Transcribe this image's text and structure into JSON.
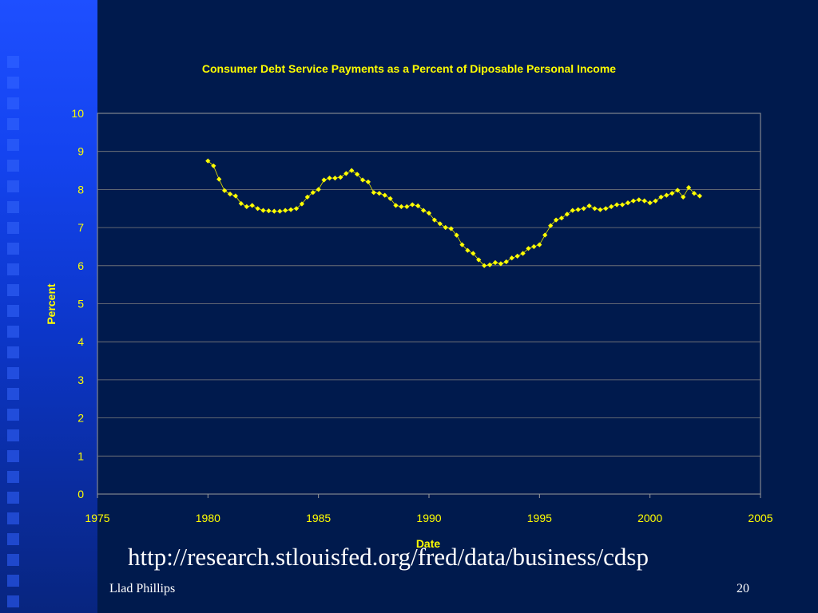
{
  "slide": {
    "url": "http://research.stlouisfed.org/fred/data/business/cdsp",
    "author": "Llad Phillips",
    "page_number": "20"
  },
  "colors": {
    "background": "#001a4d",
    "sidebar": "#1444f0",
    "accent_text": "#ffff00",
    "series": "#ffff00",
    "grid": "#7f7f7f"
  },
  "chart_data": {
    "type": "scatter",
    "title": "Consumer Debt Service Payments as a Percent of Diposable Personal Income",
    "xlabel": "Date",
    "ylabel": "Percent",
    "xlim": [
      1975,
      2005
    ],
    "ylim": [
      0,
      10
    ],
    "x_ticks": [
      "1975",
      "1980",
      "1985",
      "1990",
      "1995",
      "2000",
      "2005"
    ],
    "y_ticks": [
      "0",
      "1",
      "2",
      "3",
      "4",
      "5",
      "6",
      "7",
      "8",
      "9",
      "10"
    ],
    "grid": "horizontal",
    "connected": true,
    "series": [
      {
        "x": [
          1980.0,
          1980.25,
          1980.5,
          1980.75,
          1981.0,
          1981.25,
          1981.5,
          1981.75,
          1982.0,
          1982.25,
          1982.5,
          1982.75,
          1983.0,
          1983.25,
          1983.5,
          1983.75,
          1984.0,
          1984.25,
          1984.5,
          1984.75,
          1985.0,
          1985.25,
          1985.5,
          1985.75,
          1986.0,
          1986.25,
          1986.5,
          1986.75,
          1987.0,
          1987.25,
          1987.5,
          1987.75,
          1988.0,
          1988.25,
          1988.5,
          1988.75,
          1989.0,
          1989.25,
          1989.5,
          1989.75,
          1990.0,
          1990.25,
          1990.5,
          1990.75,
          1991.0,
          1991.25,
          1991.5,
          1991.75,
          1992.0,
          1992.25,
          1992.5,
          1992.75,
          1993.0,
          1993.25,
          1993.5,
          1993.75,
          1994.0,
          1994.25,
          1994.5,
          1994.75,
          1995.0,
          1995.25,
          1995.5,
          1995.75,
          1996.0,
          1996.25,
          1996.5,
          1996.75,
          1997.0,
          1997.25,
          1997.5,
          1997.75,
          1998.0,
          1998.25,
          1998.5,
          1998.75,
          1999.0,
          1999.25,
          1999.5,
          1999.75,
          2000.0,
          2000.25,
          2000.5,
          2000.75,
          2001.0,
          2001.25,
          2001.5,
          2001.75,
          2002.0,
          2002.25
        ],
        "y": [
          8.75,
          8.62,
          8.27,
          7.97,
          7.88,
          7.83,
          7.63,
          7.55,
          7.58,
          7.5,
          7.45,
          7.44,
          7.43,
          7.43,
          7.45,
          7.47,
          7.5,
          7.62,
          7.8,
          7.92,
          8.0,
          8.25,
          8.3,
          8.3,
          8.32,
          8.42,
          8.5,
          8.4,
          8.25,
          8.2,
          7.92,
          7.9,
          7.85,
          7.76,
          7.58,
          7.55,
          7.55,
          7.6,
          7.57,
          7.45,
          7.38,
          7.2,
          7.1,
          7.0,
          6.97,
          6.8,
          6.55,
          6.4,
          6.32,
          6.15,
          6.0,
          6.02,
          6.08,
          6.05,
          6.1,
          6.2,
          6.25,
          6.32,
          6.45,
          6.5,
          6.55,
          6.8,
          7.05,
          7.2,
          7.25,
          7.35,
          7.45,
          7.47,
          7.5,
          7.57,
          7.5,
          7.47,
          7.5,
          7.55,
          7.6,
          7.6,
          7.65,
          7.7,
          7.73,
          7.7,
          7.65,
          7.7,
          7.8,
          7.85,
          7.9,
          7.98,
          7.8,
          8.05,
          7.9,
          7.83
        ]
      }
    ]
  }
}
